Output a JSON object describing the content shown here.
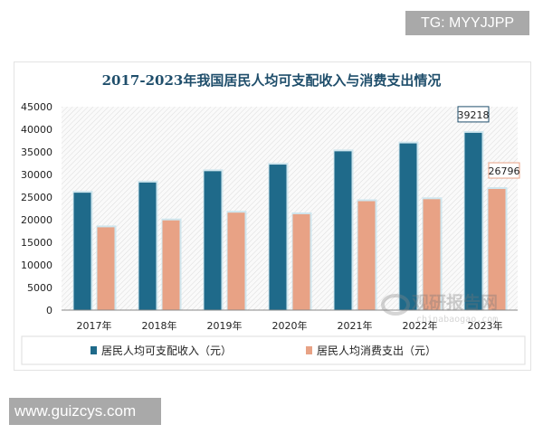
{
  "watermarks": {
    "top": "TG: MYYJJPP",
    "bottom": "www.guizcys.com",
    "logo": "观研报告网",
    "logo_url_text": "chinabaogao.com"
  },
  "colors": {
    "income": "#1f6a8a",
    "consumption": "#e8a285",
    "title": "#1f4e6b"
  },
  "chart_data": {
    "type": "bar",
    "title": "2017-2023年我国居民人均可支配收入与消费支出情况",
    "categories": [
      "2017年",
      "2018年",
      "2019年",
      "2020年",
      "2021年",
      "2022年",
      "2023年"
    ],
    "series": [
      {
        "name": "居民人均可支配收入（元）",
        "values": [
          25974,
          28228,
          30733,
          32189,
          35128,
          36883,
          39218
        ]
      },
      {
        "name": "居民人均消费支出（元）",
        "values": [
          18322,
          19853,
          21559,
          21210,
          24100,
          24538,
          26796
        ]
      }
    ],
    "data_labels": [
      {
        "series": 0,
        "index": 6,
        "text": "39218"
      },
      {
        "series": 1,
        "index": 6,
        "text": "26796"
      }
    ],
    "yticks": [
      "0",
      "5000",
      "10000",
      "15000",
      "20000",
      "25000",
      "30000",
      "35000",
      "40000",
      "45000"
    ],
    "ylim": [
      0,
      45000
    ],
    "xlabel": "",
    "ylabel": "",
    "grid": false,
    "legend": "bottom"
  }
}
